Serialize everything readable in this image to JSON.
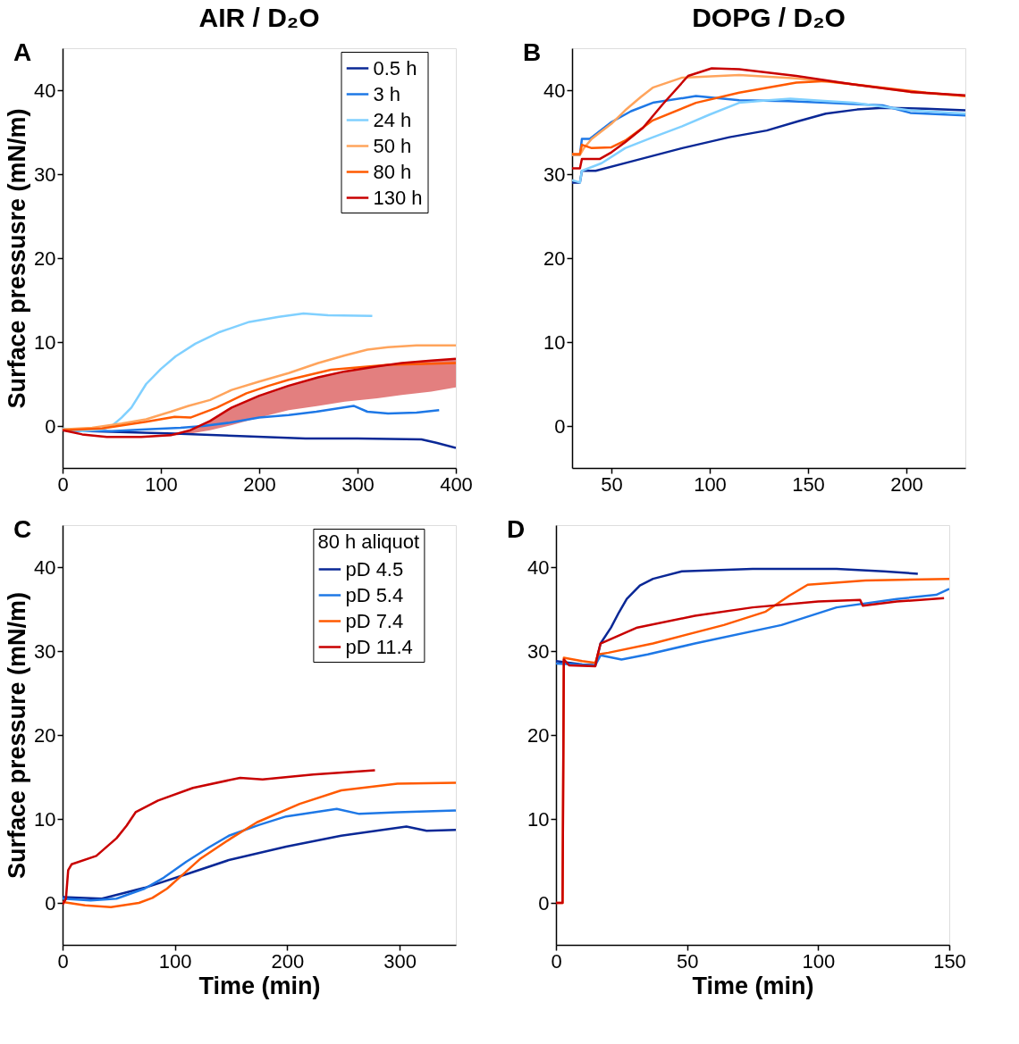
{
  "chart_data": [
    {
      "type": "line",
      "title": "AIR / D₂O",
      "ylabel": "Surface pressusre (mN/m)",
      "annotations": [
        "A"
      ],
      "xlim": [
        0,
        400
      ],
      "xticks": [
        0,
        100,
        200,
        300,
        400
      ],
      "ylim": [
        -5,
        45
      ],
      "yticks": [
        0,
        10,
        20,
        30,
        40
      ],
      "grid": false,
      "legend": "top right",
      "series": [
        {
          "name": "0.5 h",
          "color": "#0a2896",
          "x": [
            0,
            50,
            114,
            180,
            247,
            300,
            365,
            380,
            400
          ],
          "values": [
            -0.5,
            -0.7,
            -0.9,
            -1.2,
            -1.5,
            -1.5,
            -1.6,
            -2.0,
            -2.6
          ]
        },
        {
          "name": "3 h",
          "color": "#1e78e6",
          "x": [
            0,
            50,
            85,
            120,
            143,
            170,
            200,
            230,
            258,
            280,
            296,
            310,
            331,
            360,
            383
          ],
          "values": [
            -0.5,
            -0.6,
            -0.4,
            -0.2,
            0,
            0.4,
            1.0,
            1.3,
            1.7,
            2.1,
            2.4,
            1.7,
            1.5,
            1.6,
            1.9
          ]
        },
        {
          "name": "24 h",
          "color": "#80d0ff",
          "x": [
            0,
            20,
            40,
            50,
            60,
            70,
            85,
            100,
            115,
            135,
            160,
            190,
            220,
            245,
            270,
            315
          ],
          "values": [
            -0.3,
            -0.6,
            -0.4,
            0,
            1,
            2.2,
            5,
            6.8,
            8.3,
            9.8,
            11.2,
            12.4,
            13,
            13.4,
            13.2,
            13.1
          ]
        },
        {
          "name": "50 h",
          "color": "#ffa45c",
          "x": [
            0,
            30,
            60,
            85,
            110,
            128,
            150,
            172,
            200,
            230,
            260,
            287,
            310,
            331,
            360,
            400
          ],
          "values": [
            -0.4,
            -0.2,
            0.3,
            0.8,
            1.7,
            2.4,
            3.1,
            4.3,
            5.3,
            6.3,
            7.5,
            8.4,
            9.1,
            9.4,
            9.6,
            9.6
          ]
        },
        {
          "name": "80 h",
          "color": "#ff5a00",
          "x": [
            0,
            40,
            85,
            114,
            130,
            157,
            187,
            210,
            230,
            273,
            331,
            400
          ],
          "values": [
            -0.5,
            -0.3,
            0.5,
            1.1,
            1.0,
            2.2,
            3.9,
            4.8,
            5.5,
            6.7,
            7.3,
            7.5
          ]
        },
        {
          "name": "130 h",
          "color": "#c80000",
          "x": [
            0,
            20,
            45,
            80,
            110,
            130,
            150,
            172,
            200,
            230,
            260,
            287,
            320,
            345,
            375,
            400
          ],
          "values": [
            -0.5,
            -1.0,
            -1.3,
            -1.3,
            -1.1,
            -0.5,
            0.6,
            2.2,
            3.6,
            4.8,
            5.8,
            6.5,
            7.1,
            7.5,
            7.8,
            8.0
          ],
          "lower": [
            -0.5,
            -1.0,
            -1.3,
            -1.3,
            -1.2,
            -0.9,
            -0.5,
            0.1,
            1.0,
            1.9,
            2.4,
            2.9,
            3.3,
            3.7,
            4.1,
            4.6
          ],
          "upper": [
            -0.5,
            -1.0,
            -1.3,
            -1.3,
            -1.1,
            -0.5,
            0.6,
            2.2,
            3.6,
            4.8,
            5.8,
            6.5,
            7.1,
            7.5,
            7.8,
            8.0
          ]
        }
      ]
    },
    {
      "type": "line",
      "title": "DOPG / D₂O",
      "annotations": [
        "B"
      ],
      "xlim": [
        30,
        230
      ],
      "xticks": [
        50,
        100,
        150,
        200
      ],
      "ylim": [
        -5,
        45
      ],
      "yticks": [
        0,
        10,
        20,
        30,
        40
      ],
      "grid": false,
      "series": [
        {
          "color": "#0a2896",
          "x": [
            30,
            34,
            35,
            42,
            60,
            86,
            110,
            129,
            145,
            159,
            175,
            188,
            210,
            230
          ],
          "values": [
            29.0,
            29.0,
            30.4,
            30.4,
            31.5,
            33.1,
            34.4,
            35.2,
            36.3,
            37.2,
            37.7,
            37.9,
            37.8,
            37.6
          ]
        },
        {
          "color": "#1e78e6",
          "x": [
            30,
            34,
            35,
            39,
            50,
            60,
            71,
            93,
            115,
            140,
            159,
            188,
            202,
            230
          ],
          "values": [
            32.3,
            32.3,
            34.2,
            34.2,
            36.2,
            37.5,
            38.5,
            39.3,
            38.8,
            38.7,
            38.5,
            38.2,
            37.3,
            37.0
          ]
        },
        {
          "color": "#80d0ff",
          "x": [
            30,
            34,
            35,
            45,
            57,
            70,
            86,
            100,
            115,
            130,
            141,
            160,
            173,
            202,
            230
          ],
          "values": [
            29.3,
            29.0,
            30.4,
            31.3,
            33.1,
            34.3,
            35.7,
            37.1,
            38.5,
            38.8,
            39.0,
            38.7,
            38.5,
            37.6,
            37.2
          ]
        },
        {
          "color": "#ffa45c",
          "x": [
            30,
            34,
            36,
            40,
            50,
            57,
            65,
            71,
            86,
            115,
            144,
            173,
            202,
            230
          ],
          "values": [
            32.3,
            32.3,
            33.1,
            34.2,
            36.0,
            37.6,
            39.2,
            40.3,
            41.5,
            41.8,
            41.4,
            40.7,
            39.8,
            39.3
          ]
        },
        {
          "color": "#ff5a00",
          "x": [
            30,
            34,
            35,
            40,
            50,
            57,
            71,
            93,
            115,
            144,
            159,
            188,
            210,
            230
          ],
          "values": [
            32.4,
            32.4,
            33.5,
            33.1,
            33.2,
            34.0,
            36.4,
            38.5,
            39.7,
            40.9,
            41.1,
            40.3,
            39.7,
            39.3
          ]
        },
        {
          "color": "#c80000",
          "x": [
            30,
            34,
            35,
            44,
            50,
            57,
            66,
            76,
            89,
            101,
            115,
            144,
            173,
            202,
            230
          ],
          "values": [
            30.7,
            30.7,
            31.8,
            31.8,
            32.6,
            33.8,
            35.5,
            38.3,
            41.7,
            42.6,
            42.5,
            41.7,
            40.7,
            39.8,
            39.4
          ]
        }
      ]
    },
    {
      "type": "line",
      "xlabel": "Time (min)",
      "ylabel": "Surface pressure (mN/m)",
      "annotations": [
        "C"
      ],
      "legend_title": "80 h aliquot",
      "xlim": [
        0,
        350
      ],
      "xticks": [
        0,
        100,
        200,
        300
      ],
      "ylim": [
        -5,
        45
      ],
      "yticks": [
        0,
        10,
        20,
        30,
        40
      ],
      "grid": false,
      "legend": "top right",
      "series": [
        {
          "name": "pD 4.5",
          "color": "#0a2896",
          "x": [
            0,
            35,
            73,
            110,
            148,
            199,
            248,
            306,
            324,
            350
          ],
          "values": [
            0.7,
            0.5,
            1.8,
            3.4,
            5.1,
            6.7,
            8.0,
            9.1,
            8.6,
            8.7
          ]
        },
        {
          "name": "pD 5.4",
          "color": "#1e78e6",
          "x": [
            0,
            25,
            48,
            73,
            90,
            110,
            130,
            148,
            175,
            199,
            244,
            264,
            298,
            350
          ],
          "values": [
            0.5,
            0.3,
            0.5,
            1.7,
            3.0,
            4.9,
            6.6,
            8.0,
            9.3,
            10.3,
            11.2,
            10.6,
            10.8,
            11.0
          ]
        },
        {
          "name": "pD 7.4",
          "color": "#ff5a00",
          "x": [
            0,
            20,
            43,
            68,
            80,
            93,
            108,
            123,
            150,
            173,
            211,
            248,
            298,
            350
          ],
          "values": [
            0.1,
            -0.3,
            -0.5,
            0,
            0.6,
            1.7,
            3.5,
            5.3,
            7.7,
            9.6,
            11.8,
            13.4,
            14.2,
            14.3
          ]
        },
        {
          "name": "pD 11.4",
          "color": "#c80000",
          "x": [
            0,
            3,
            5,
            8,
            30,
            48,
            57,
            65,
            85,
            116,
            158,
            178,
            223,
            278
          ],
          "values": [
            -0.2,
            0.5,
            3.9,
            4.6,
            5.6,
            7.7,
            9.2,
            10.8,
            12.2,
            13.7,
            14.9,
            14.7,
            15.3,
            15.8
          ]
        }
      ]
    },
    {
      "type": "line",
      "xlabel": "Time (min)",
      "annotations": [
        "D"
      ],
      "xlim": [
        0,
        150
      ],
      "xticks": [
        0,
        50,
        100,
        150
      ],
      "ylim": [
        -5,
        45
      ],
      "yticks": [
        0,
        10,
        20,
        30,
        40
      ],
      "grid": false,
      "series": [
        {
          "color": "#0a2896",
          "x": [
            0,
            10,
            15,
            17,
            21,
            24,
            27,
            32,
            37,
            48,
            75,
            107,
            125,
            138
          ],
          "values": [
            28.8,
            28.4,
            28.3,
            30.9,
            32.8,
            34.6,
            36.2,
            37.8,
            38.6,
            39.5,
            39.8,
            39.8,
            39.5,
            39.2
          ]
        },
        {
          "color": "#1e78e6",
          "x": [
            0,
            15,
            17,
            25,
            35,
            53,
            86,
            107,
            130,
            145,
            150
          ],
          "values": [
            28.5,
            28.3,
            29.5,
            29.0,
            29.6,
            30.9,
            33.1,
            35.2,
            36.2,
            36.7,
            37.4
          ]
        },
        {
          "color": "#ff5a00",
          "x": [
            0,
            2.5,
            3,
            10,
            15,
            16,
            20,
            37,
            64,
            80,
            89,
            96,
            118,
            150
          ],
          "values": [
            0,
            0,
            29.2,
            28.8,
            28.6,
            29.6,
            29.8,
            30.9,
            33.1,
            34.7,
            36.6,
            37.9,
            38.4,
            38.6
          ]
        },
        {
          "color": "#c80000",
          "x": [
            0,
            2.5,
            3,
            5,
            15,
            16,
            17,
            31,
            53,
            75,
            100,
            116,
            117,
            130,
            148
          ],
          "values": [
            0,
            0,
            29.0,
            28.3,
            28.2,
            29.7,
            30.9,
            32.8,
            34.2,
            35.2,
            35.9,
            36.1,
            35.4,
            35.9,
            36.3
          ]
        }
      ]
    }
  ]
}
